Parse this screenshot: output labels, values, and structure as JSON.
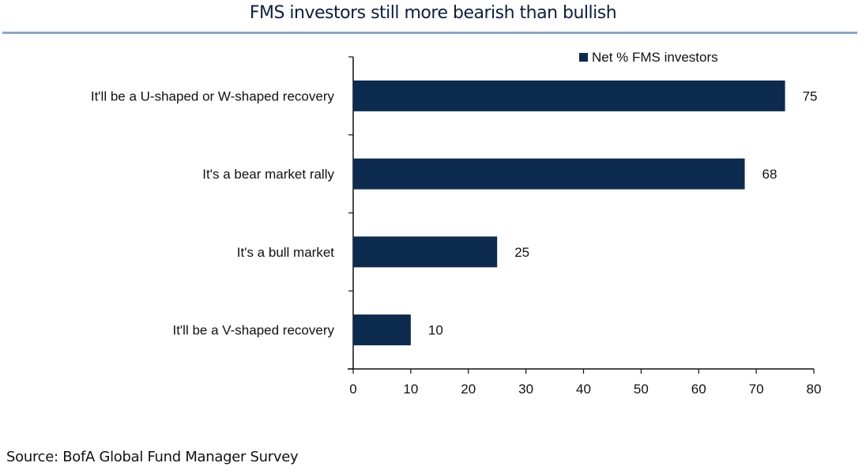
{
  "title": "FMS investors still more bearish than bullish",
  "source": "Source: BofA Global Fund Manager Survey",
  "chart_data": {
    "type": "bar",
    "orientation": "horizontal",
    "categories": [
      "It'll be a U-shaped or W-shaped recovery",
      "It's a bear market rally",
      "It's a bull market",
      "It'll be a V-shaped recovery"
    ],
    "series": [
      {
        "name": "Net % FMS investors",
        "values": [
          75,
          68,
          25,
          10
        ],
        "color": "#0d2a4f"
      }
    ],
    "data_labels": [
      "75",
      "68",
      "25",
      "10"
    ],
    "xlim": [
      0,
      80
    ],
    "x_ticks": [
      "0",
      "10",
      "20",
      "30",
      "40",
      "50",
      "60",
      "70",
      "80"
    ],
    "grid": false,
    "legend": "top-right"
  }
}
